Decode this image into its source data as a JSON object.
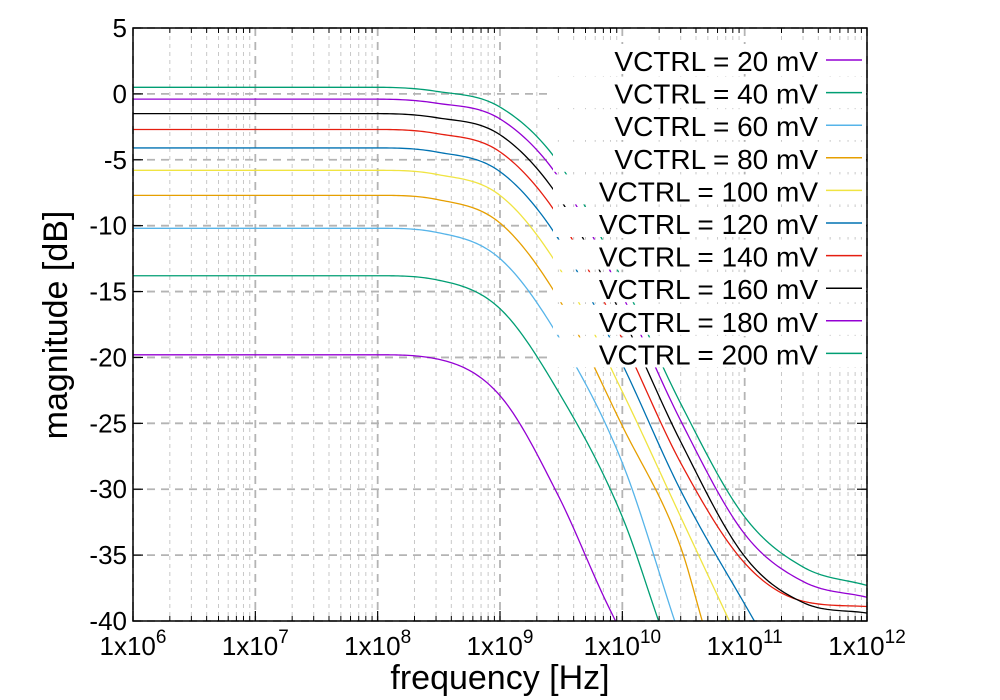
{
  "chart_data": {
    "type": "line",
    "xlabel": "frequency [Hz]",
    "ylabel": "magnitude [dB]",
    "xscale": "log",
    "xlim": [
      1000000,
      1000000000000
    ],
    "ylim": [
      -40,
      5
    ],
    "x_ticks": [
      {
        "value": 1000000,
        "mantissa": "1x10",
        "exponent": "6"
      },
      {
        "value": 10000000,
        "mantissa": "1x10",
        "exponent": "7"
      },
      {
        "value": 100000000,
        "mantissa": "1x10",
        "exponent": "8"
      },
      {
        "value": 1000000000,
        "mantissa": "1x10",
        "exponent": "9"
      },
      {
        "value": 10000000000,
        "mantissa": "1x10",
        "exponent": "10"
      },
      {
        "value": 100000000000,
        "mantissa": "1x10",
        "exponent": "11"
      },
      {
        "value": 1000000000000,
        "mantissa": "1x10",
        "exponent": "12"
      }
    ],
    "y_ticks": [
      5,
      0,
      -5,
      -10,
      -15,
      -20,
      -25,
      -30,
      -35,
      -40
    ],
    "grid": true,
    "legend_position": "top-right",
    "series": [
      {
        "name": "VCTRL =  20 mV",
        "color": "#9400d3",
        "points": [
          [
            1000000.0,
            -19.8
          ],
          [
            10000000.0,
            -19.8
          ],
          [
            100000000.0,
            -19.8
          ],
          [
            300000000.0,
            -20.1
          ],
          [
            1000000000.0,
            -22.9
          ],
          [
            3000000000.0,
            -30.5
          ],
          [
            7000000000.0,
            -38.1
          ],
          [
            8800000000.0,
            -40
          ]
        ]
      },
      {
        "name": "VCTRL =  40 mV",
        "color": "#009e73",
        "points": [
          [
            1000000.0,
            -13.8
          ],
          [
            10000000.0,
            -13.8
          ],
          [
            100000000.0,
            -13.8
          ],
          [
            300000000.0,
            -14.1
          ],
          [
            1000000000.0,
            -16.3
          ],
          [
            3000000000.0,
            -22.6
          ],
          [
            10000000000.0,
            -32.1
          ],
          [
            19800000000.0,
            -40
          ]
        ]
      },
      {
        "name": "VCTRL =  60 mV",
        "color": "#56b4e9",
        "points": [
          [
            1000000.0,
            -10.2
          ],
          [
            10000000.0,
            -10.2
          ],
          [
            100000000.0,
            -10.2
          ],
          [
            300000000.0,
            -10.5
          ],
          [
            1000000000.0,
            -12.5
          ],
          [
            3000000000.0,
            -18.4
          ],
          [
            10000000000.0,
            -28.0
          ],
          [
            26800000000.0,
            -40
          ]
        ]
      },
      {
        "name": "VCTRL =  80 mV",
        "color": "#e69f00",
        "points": [
          [
            1000000.0,
            -7.7
          ],
          [
            10000000.0,
            -7.7
          ],
          [
            100000000.0,
            -7.7
          ],
          [
            300000000.0,
            -8.0
          ],
          [
            1000000000.0,
            -9.8
          ],
          [
            3000000000.0,
            -15.5
          ],
          [
            10000000000.0,
            -25.2
          ],
          [
            30000000000.0,
            -34.4
          ],
          [
            45000000000.0,
            -40
          ]
        ]
      },
      {
        "name": "VCTRL = 100 mV",
        "color": "#f0e442",
        "points": [
          [
            1000000.0,
            -5.8
          ],
          [
            10000000.0,
            -5.8
          ],
          [
            100000000.0,
            -5.8
          ],
          [
            300000000.0,
            -6.1
          ],
          [
            1000000000.0,
            -7.7
          ],
          [
            3000000000.0,
            -13.1
          ],
          [
            10000000000.0,
            -22.6
          ],
          [
            30000000000.0,
            -32.1
          ],
          [
            75000000000.0,
            -40
          ]
        ]
      },
      {
        "name": "VCTRL = 120 mV",
        "color": "#0072b2",
        "points": [
          [
            1000000.0,
            -4.1
          ],
          [
            10000000.0,
            -4.1
          ],
          [
            100000000.0,
            -4.1
          ],
          [
            300000000.0,
            -4.4
          ],
          [
            1000000000.0,
            -5.9
          ],
          [
            3000000000.0,
            -11.0
          ],
          [
            10000000000.0,
            -20.5
          ],
          [
            30000000000.0,
            -30.1
          ],
          [
            120000000000.0,
            -40
          ]
        ]
      },
      {
        "name": "VCTRL = 140 mV",
        "color": "#e51e10",
        "points": [
          [
            1000000.0,
            -2.7
          ],
          [
            10000000.0,
            -2.7
          ],
          [
            100000000.0,
            -2.7
          ],
          [
            300000000.0,
            -3.0
          ],
          [
            1000000000.0,
            -4.4
          ],
          [
            3000000000.0,
            -9.3
          ],
          [
            10000000000.0,
            -18.6
          ],
          [
            30000000000.0,
            -28.0
          ],
          [
            100000000000.0,
            -35.6
          ],
          [
            300000000000.0,
            -38.5
          ],
          [
            1000000000000.0,
            -38.9
          ]
        ]
      },
      {
        "name": "VCTRL = 160 mV",
        "color": "#000000",
        "points": [
          [
            1000000.0,
            -1.5
          ],
          [
            10000000.0,
            -1.5
          ],
          [
            100000000.0,
            -1.5
          ],
          [
            300000000.0,
            -1.8
          ],
          [
            1000000000.0,
            -3.1
          ],
          [
            3000000000.0,
            -7.8
          ],
          [
            10000000000.0,
            -16.9
          ],
          [
            30000000000.0,
            -26.4
          ],
          [
            100000000000.0,
            -35.1
          ],
          [
            300000000000.0,
            -38.6
          ],
          [
            1000000000000.0,
            -39.4
          ]
        ]
      },
      {
        "name": "VCTRL = 180 mV",
        "color": "#9400d3",
        "points": [
          [
            1000000.0,
            -0.4
          ],
          [
            10000000.0,
            -0.4
          ],
          [
            100000000.0,
            -0.4
          ],
          [
            300000000.0,
            -0.7
          ],
          [
            1000000000.0,
            -1.9
          ],
          [
            3000000000.0,
            -6.3
          ],
          [
            10000000000.0,
            -15.3
          ],
          [
            30000000000.0,
            -24.8
          ],
          [
            100000000000.0,
            -33.4
          ],
          [
            300000000000.0,
            -37.0
          ],
          [
            1000000000000.0,
            -38.2
          ]
        ]
      },
      {
        "name": "VCTRL = 200 mV",
        "color": "#009e73",
        "points": [
          [
            1000000.0,
            0.5
          ],
          [
            10000000.0,
            0.5
          ],
          [
            100000000.0,
            0.5
          ],
          [
            300000000.0,
            0.2
          ],
          [
            1000000000.0,
            -1.0
          ],
          [
            3000000000.0,
            -5.2
          ],
          [
            10000000000.0,
            -14.1
          ],
          [
            30000000000.0,
            -23.5
          ],
          [
            100000000000.0,
            -32.1
          ],
          [
            300000000000.0,
            -35.9
          ],
          [
            1000000000000.0,
            -37.3
          ]
        ]
      }
    ]
  }
}
